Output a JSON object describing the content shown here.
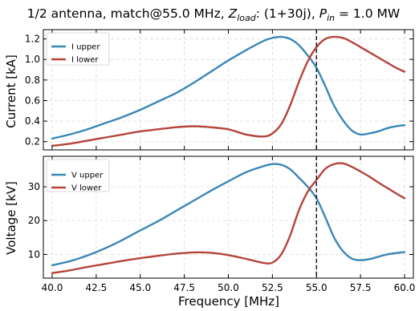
{
  "chart_data": {
    "title": "1/2 antenna, match@55.0 MHz, Z_load: (1+30j), P_in = 1.0 MW",
    "title_parts": {
      "prefix": "1/2 antenna, match@55.0 MHz, ",
      "z_symbol": "Z",
      "z_sub": "load",
      "z_value": ": (1+30j), ",
      "p_symbol": "P",
      "p_sub": "in",
      "p_value": " = 1.0 MW"
    },
    "xlabel": "Frequency [MHz]",
    "xlim": [
      39.5,
      60.5
    ],
    "xticks": [
      "40.0",
      "42.5",
      "45.0",
      "47.5",
      "50.0",
      "52.5",
      "55.0",
      "57.5",
      "60.0"
    ],
    "match_frequency": 55.0,
    "grid": true,
    "charts": [
      {
        "type": "line",
        "ylabel": "Current [kA]",
        "ylim": [
          0.12,
          1.29
        ],
        "yticks": [
          "0.2",
          "0.4",
          "0.6",
          "0.8",
          "1.0",
          "1.2"
        ],
        "legend_position": "top-left",
        "x": [
          40,
          41,
          42,
          43,
          44,
          45,
          46,
          47,
          48,
          49,
          50,
          51,
          52,
          52.5,
          53,
          53.5,
          54,
          54.5,
          55,
          55.5,
          56,
          56.5,
          57,
          57.5,
          58,
          58.5,
          59,
          59.5,
          60
        ],
        "series": [
          {
            "name": "I upper",
            "color": "#3a87b8",
            "values": [
              0.23,
              0.27,
              0.32,
              0.38,
              0.44,
              0.51,
              0.59,
              0.67,
              0.77,
              0.88,
              0.99,
              1.09,
              1.18,
              1.21,
              1.22,
              1.2,
              1.14,
              1.04,
              0.92,
              0.74,
              0.55,
              0.41,
              0.31,
              0.27,
              0.28,
              0.3,
              0.33,
              0.35,
              0.36
            ]
          },
          {
            "name": "I lower",
            "color": "#b5443a",
            "values": [
              0.16,
              0.18,
              0.21,
              0.24,
              0.27,
              0.3,
              0.32,
              0.34,
              0.35,
              0.34,
              0.32,
              0.27,
              0.25,
              0.28,
              0.37,
              0.55,
              0.78,
              0.98,
              1.12,
              1.2,
              1.22,
              1.21,
              1.17,
              1.12,
              1.07,
              1.02,
              0.97,
              0.92,
              0.88
            ]
          }
        ]
      },
      {
        "type": "line",
        "ylabel": "Voltage [kV]",
        "ylim": [
          3.0,
          39.0
        ],
        "yticks": [
          "10",
          "20",
          "30"
        ],
        "legend_position": "top-left",
        "x": [
          40,
          41,
          42,
          43,
          44,
          45,
          46,
          47,
          48,
          49,
          50,
          51,
          52,
          52.5,
          53,
          53.5,
          54,
          54.5,
          55,
          55.5,
          56,
          56.5,
          57,
          57.5,
          58,
          58.5,
          59,
          59.5,
          60
        ],
        "series": [
          {
            "name": "V upper",
            "color": "#3a87b8",
            "values": [
              6.8,
              8.0,
              9.7,
              11.8,
              14.3,
              17.1,
              19.8,
              22.8,
              25.8,
              28.8,
              31.6,
              34.3,
              36.1,
              36.7,
              36.5,
              35.2,
              32.7,
              30.0,
              26.6,
              21.0,
              15.0,
              11.0,
              8.8,
              8.3,
              8.6,
              9.3,
              10.0,
              10.4,
              10.7
            ]
          },
          {
            "name": "V lower",
            "color": "#b5443a",
            "values": [
              4.5,
              5.3,
              6.3,
              7.2,
              8.1,
              8.9,
              9.6,
              10.2,
              10.6,
              10.5,
              9.8,
              8.7,
              7.5,
              7.6,
              10.0,
              15.5,
              23.0,
              28.5,
              32.0,
              35.3,
              36.7,
              36.9,
              35.9,
              34.5,
              33.0,
              31.3,
              29.7,
              28.1,
              26.6
            ]
          }
        ]
      }
    ]
  }
}
